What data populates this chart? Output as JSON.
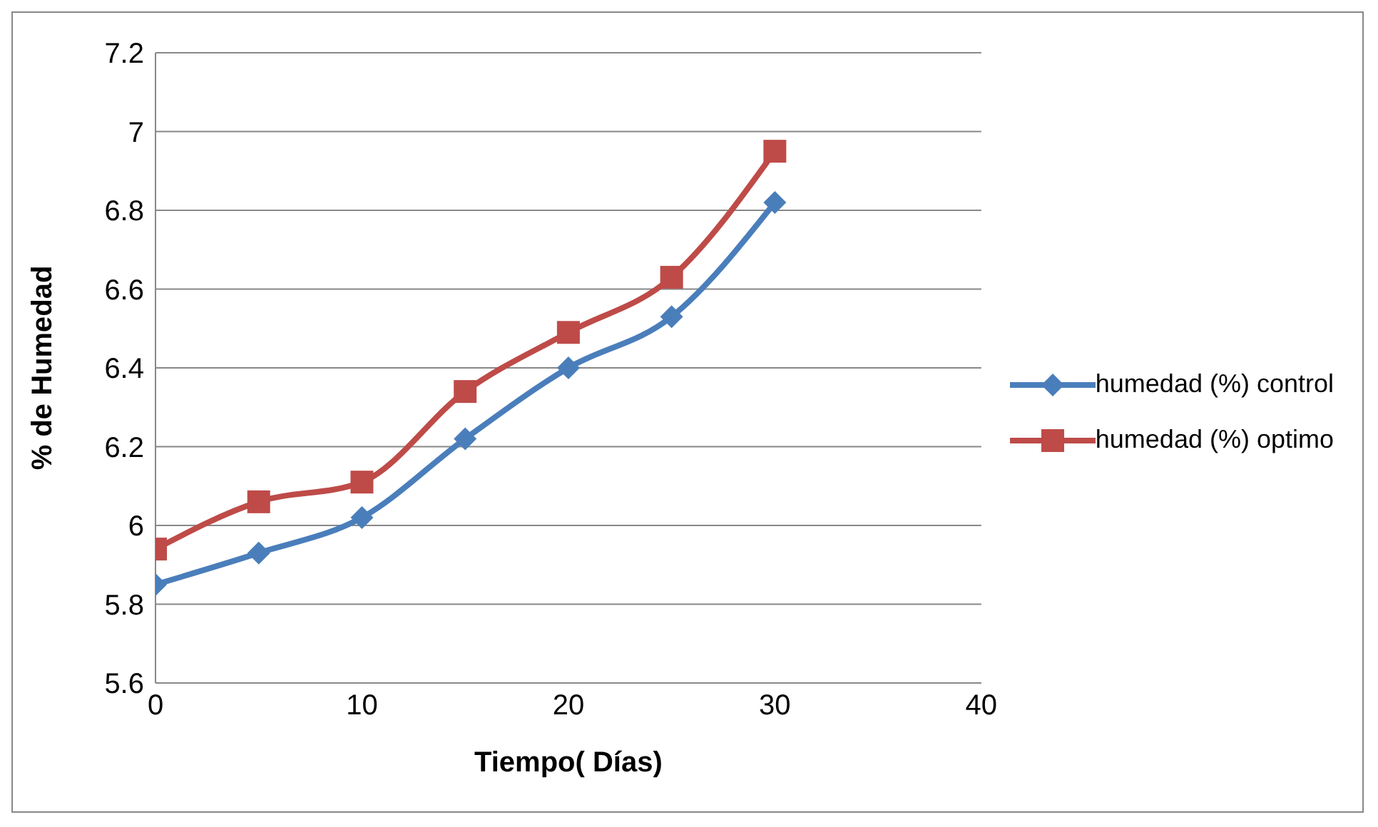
{
  "chart_data": {
    "type": "line",
    "xlabel": "Tiempo( Días)",
    "ylabel": "% de Humedad",
    "x": [
      0,
      5,
      10,
      15,
      20,
      25,
      30
    ],
    "series": [
      {
        "name": "humedad (%) control",
        "color": "#4a7ebb",
        "marker": "diamond",
        "values": [
          5.85,
          5.93,
          6.02,
          6.22,
          6.4,
          6.53,
          6.82
        ]
      },
      {
        "name": "humedad (%) optimo",
        "color": "#be4b48",
        "marker": "square",
        "values": [
          5.94,
          6.06,
          6.11,
          6.34,
          6.49,
          6.63,
          6.95
        ]
      }
    ],
    "xlim": [
      0,
      40
    ],
    "xticks": [
      0,
      10,
      20,
      30,
      40
    ],
    "ylim": [
      5.6,
      7.2
    ],
    "yticks": [
      5.6,
      5.8,
      6,
      6.2,
      6.4,
      6.6,
      6.8,
      7,
      7.2
    ],
    "grid": "y",
    "legend": "right",
    "line_style": "solid"
  }
}
